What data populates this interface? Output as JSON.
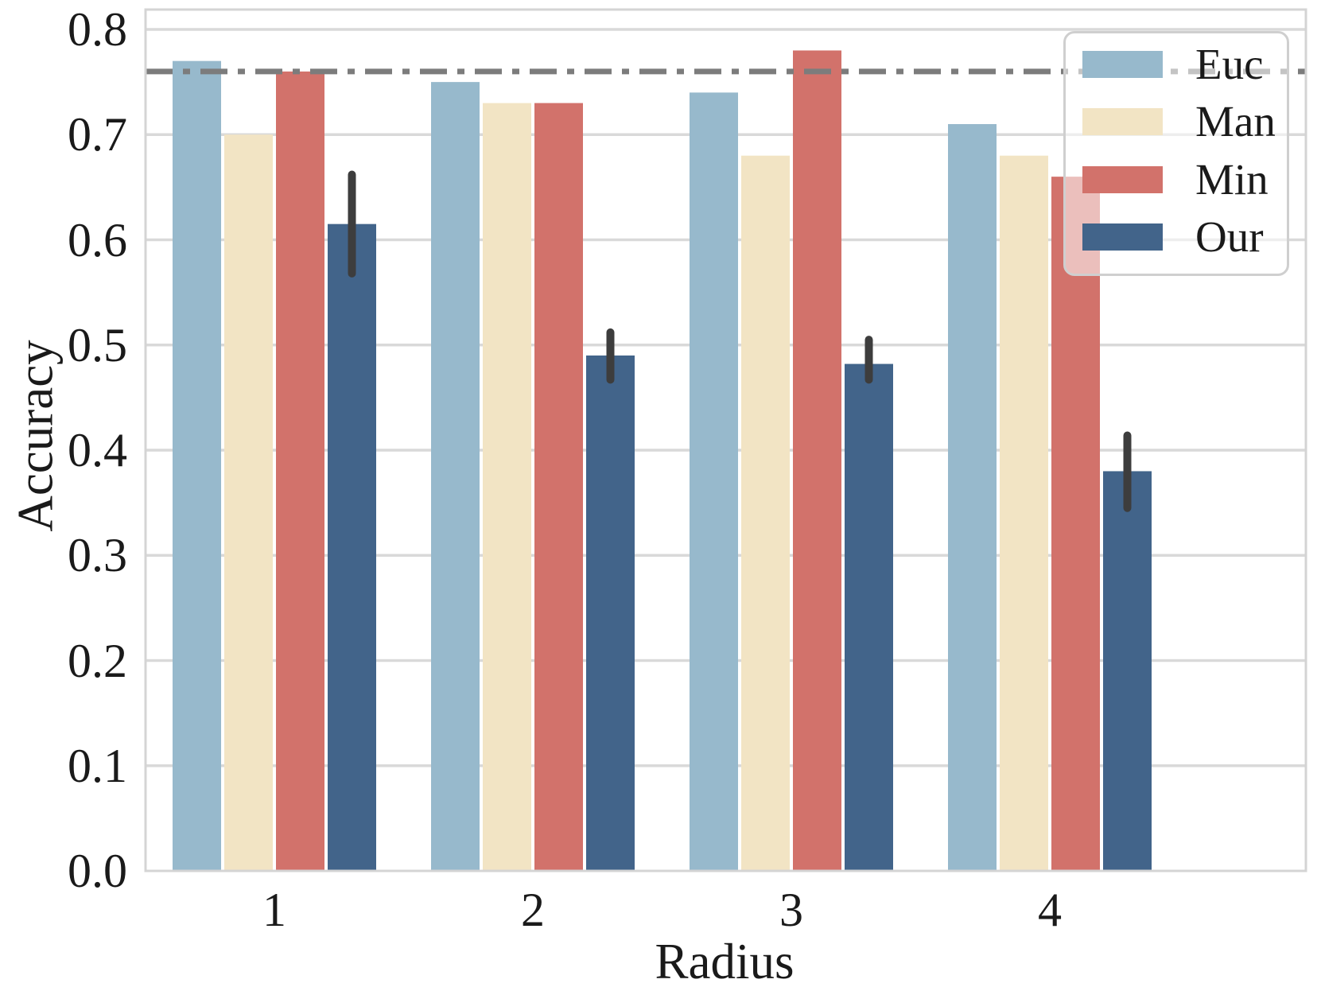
{
  "chart_data": {
    "type": "bar",
    "title": "",
    "xlabel": "Radius",
    "ylabel": "Accuracy",
    "categories": [
      "1",
      "2",
      "3",
      "4"
    ],
    "series": [
      {
        "name": "Euc",
        "color": "#97b9cc",
        "values": [
          0.77,
          0.75,
          0.74,
          0.71
        ]
      },
      {
        "name": "Man",
        "color": "#f2e4c4",
        "values": [
          0.7,
          0.73,
          0.68,
          0.68
        ]
      },
      {
        "name": "Min",
        "color": "#d2726b",
        "values": [
          0.76,
          0.73,
          0.78,
          0.66
        ]
      },
      {
        "name": "Our",
        "color": "#42648a",
        "values": [
          0.615,
          0.49,
          0.482,
          0.38
        ],
        "error_bars": [
          [
            0.568,
            0.662
          ],
          [
            0.467,
            0.512
          ],
          [
            0.467,
            0.505
          ],
          [
            0.345,
            0.414
          ]
        ]
      }
    ],
    "baseline": {
      "value": 0.76,
      "style": "dashdot",
      "color": "#7c7c7c"
    },
    "ylim": [
      0.0,
      0.819
    ],
    "yticks": [
      "0.0",
      "0.1",
      "0.2",
      "0.3",
      "0.4",
      "0.5",
      "0.6",
      "0.7",
      "0.8"
    ],
    "grid": "horizontal",
    "legend": {
      "position": "upper right",
      "labels": [
        "Euc",
        "Man",
        "Min",
        "Our"
      ]
    },
    "style": {
      "grid_color": "#d9d9d9",
      "border_color": "#d4d4d4",
      "error_color": "#3d3d3d",
      "text_color": "#1a1a1a"
    }
  }
}
